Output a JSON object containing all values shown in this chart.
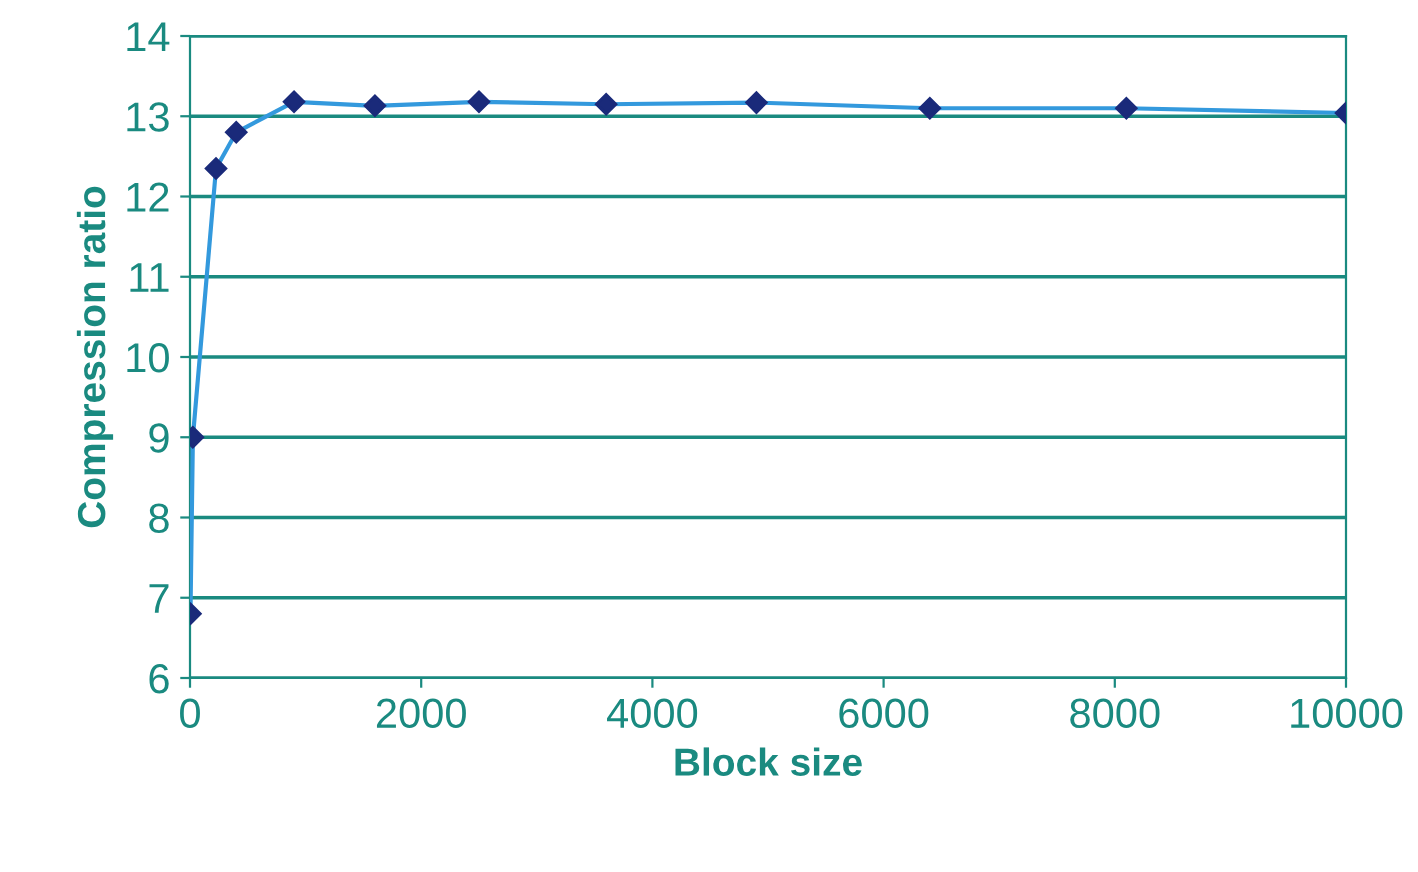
{
  "chart_data": {
    "type": "line",
    "xlabel": "Block size",
    "ylabel": "Compression ratio",
    "x": [
      4,
      25,
      225,
      400,
      900,
      1600,
      2500,
      3600,
      4900,
      6400,
      8100,
      10000
    ],
    "series": [
      {
        "color": "#3399dd",
        "values": [
          6.8,
          9.0,
          12.35,
          12.8,
          13.18,
          13.13,
          13.18,
          13.15,
          13.17,
          13.1,
          13.1,
          13.04
        ]
      }
    ],
    "marker": "diamond",
    "line_style": "solid",
    "grid": "y",
    "legend": false,
    "xlim": [
      0,
      10000
    ],
    "xticks": [
      0,
      2000,
      4000,
      6000,
      8000,
      10000
    ],
    "ylim": [
      6,
      14
    ],
    "yticks": [
      6,
      7,
      8,
      9,
      10,
      11,
      12,
      13,
      14
    ]
  }
}
